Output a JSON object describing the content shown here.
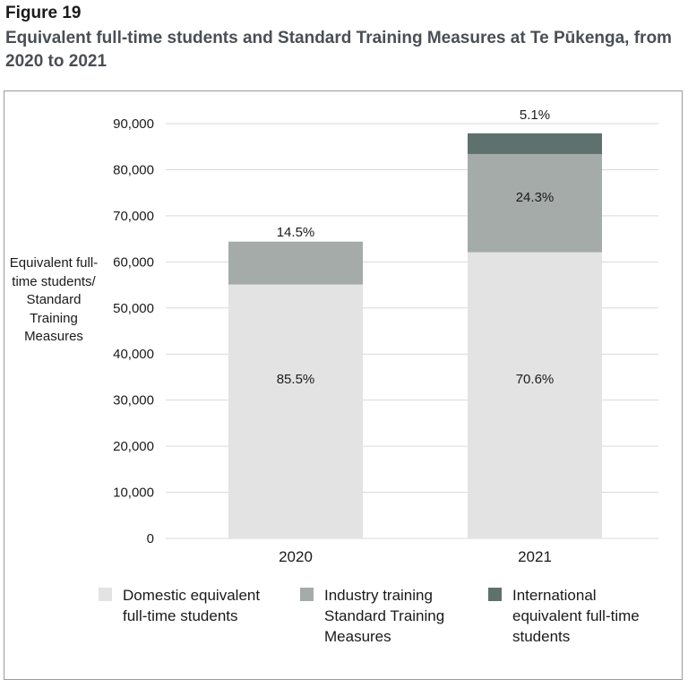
{
  "figure_label": "Figure 19",
  "chart_data": {
    "type": "bar",
    "stacked": true,
    "title": "Equivalent full-time students and Standard Training Measures at Te Pūkenga, from 2020 to 2021",
    "ylabel": "Equivalent full-time students/ Standard Training Measures",
    "ylim": [
      0,
      90000
    ],
    "yticks": [
      0,
      10000,
      20000,
      30000,
      40000,
      50000,
      60000,
      70000,
      80000,
      90000
    ],
    "ytick_labels": [
      "0",
      "10,000",
      "20,000",
      "30,000",
      "40,000",
      "50,000",
      "60,000",
      "70,000",
      "80,000",
      "90,000"
    ],
    "categories": [
      "2020",
      "2021"
    ],
    "grid": true,
    "legend_position": "bottom",
    "series": [
      {
        "name": "Domestic equivalent full-time students",
        "color": "#e3e3e3",
        "values": [
          55100,
          62100
        ],
        "labels": [
          "85.5%",
          "70.6%"
        ]
      },
      {
        "name": "Industry training Standard Training Measures",
        "color": "#a5aba8",
        "values": [
          9300,
          21300
        ],
        "labels": [
          "14.5%",
          "24.3%"
        ]
      },
      {
        "name": "International equivalent full-time students",
        "color": "#5f716c",
        "values": [
          0,
          4500
        ],
        "labels": [
          "",
          "5.1%"
        ]
      }
    ]
  }
}
